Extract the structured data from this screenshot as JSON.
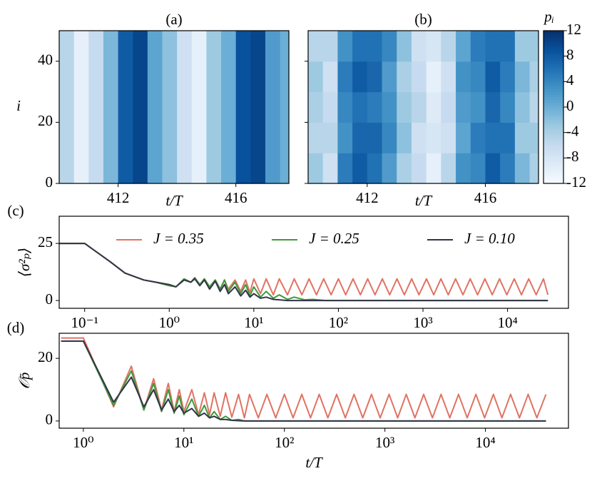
{
  "chart_data": [
    {
      "type": "heatmap",
      "title": "(a)",
      "xlabel": "t/T",
      "ylabel": "i",
      "xlim": [
        410,
        417.8
      ],
      "ylim": [
        0,
        50
      ],
      "xticks": [
        412,
        416
      ],
      "yticks": [
        0,
        20,
        40
      ],
      "x_edges": [
        410,
        410.5,
        411,
        411.5,
        412,
        412.5,
        413,
        413.5,
        414,
        414.5,
        415,
        415.5,
        416,
        416.5,
        417,
        417.5,
        417.8
      ],
      "values": [
        -5,
        -10,
        -6,
        -1,
        8,
        10,
        1,
        -2,
        -7,
        -10,
        -3,
        0,
        9,
        10,
        2,
        0
      ]
    },
    {
      "type": "heatmap",
      "title": "(b)",
      "xlabel": "t/T",
      "ytick_labels": false,
      "xlim": [
        410,
        417.8
      ],
      "ylim": [
        0,
        50
      ],
      "xticks": [
        412,
        416
      ],
      "yticks": [
        0,
        20,
        40
      ],
      "x_edges": [
        410,
        410.5,
        411,
        411.5,
        412,
        412.5,
        413,
        413.5,
        414,
        414.5,
        415,
        415.5,
        416,
        416.5,
        417,
        417.5,
        417.8
      ],
      "y_edges": [
        0,
        10,
        20,
        30,
        40,
        50
      ],
      "values": [
        [
          -3,
          -7,
          5,
          8,
          6,
          2,
          -4,
          -6,
          -10,
          -5,
          3,
          4,
          8,
          5,
          -1,
          -4
        ],
        [
          -5,
          -5,
          3,
          7,
          7,
          4,
          -2,
          -7,
          -8,
          -7,
          1,
          5,
          6,
          6,
          -3,
          -3
        ],
        [
          -4,
          -6,
          4,
          6,
          5,
          3,
          -3,
          -5,
          -9,
          -6,
          2,
          3,
          7,
          4,
          -2,
          -5
        ],
        [
          -3,
          -7,
          5,
          8,
          7,
          2,
          -4,
          -6,
          -10,
          -7,
          3,
          4,
          8,
          5,
          -1,
          -4
        ],
        [
          -5,
          -5,
          3,
          6,
          6,
          4,
          -2,
          -7,
          -8,
          -5,
          1,
          5,
          6,
          6,
          -3,
          -3
        ]
      ]
    },
    {
      "type": "colorbar",
      "label": "pᵢ",
      "clim": [
        -12,
        12
      ],
      "ticks": [
        12,
        8,
        4,
        0,
        -4,
        -8,
        -12
      ],
      "colormap": [
        "#f7fbff",
        "#deebf7",
        "#c6dbef",
        "#9ecae1",
        "#6baed6",
        "#4292c6",
        "#2171b5",
        "#08519c",
        "#08306b"
      ]
    },
    {
      "type": "line",
      "panel_label": "(c)",
      "ylabel": "⟨σ²ₚ⟩",
      "xscale": "log",
      "legend": "upper center",
      "xlim": [
        0.05,
        52500
      ],
      "ylim": [
        -3.4,
        36.9
      ],
      "yticks": [
        0,
        25
      ],
      "xticks": [
        {
          "value": 0.1,
          "label": "10⁻¹"
        },
        {
          "value": 1,
          "label": "10⁰"
        },
        {
          "value": 10,
          "label": "10¹"
        },
        {
          "value": 100,
          "label": "10²"
        },
        {
          "value": 1000,
          "label": "10³"
        },
        {
          "value": 10000,
          "label": "10⁴"
        }
      ],
      "series": [
        {
          "name": "J = 0.35",
          "color": "#e07363",
          "x": [
            0.05,
            0.1,
            0.2,
            0.3,
            0.5,
            0.7,
            1,
            1.2,
            1.5,
            1.8,
            2,
            2.3,
            2.6,
            3,
            3.5,
            4,
            4.5,
            5,
            6,
            7,
            8,
            9,
            10,
            12,
            14,
            17,
            20,
            25,
            30,
            37,
            45,
            55,
            67,
            82,
            100,
            122,
            149,
            182,
            222,
            271,
            331,
            404,
            493,
            602,
            735,
            897,
            1100,
            1340,
            1630,
            1990,
            2430,
            2970,
            3620,
            4420,
            5400,
            6590,
            8040,
            9810,
            12000,
            14600,
            17800,
            21800,
            26600,
            30000
          ],
          "values": [
            25,
            25,
            17,
            12,
            9,
            8,
            6.5,
            6,
            9.5,
            8,
            10,
            7,
            9.5,
            6,
            9,
            5,
            9,
            5,
            9,
            4,
            9,
            3.5,
            9.5,
            3,
            9.5,
            2.5,
            9.5,
            2.5,
            9.5,
            2.5,
            9.5,
            2.5,
            9.5,
            2.5,
            9.5,
            2.5,
            9.5,
            2.5,
            9.5,
            2.5,
            9.5,
            2.5,
            9.5,
            2.5,
            9.5,
            2.5,
            9.5,
            2.5,
            9.5,
            2.5,
            9.5,
            2.5,
            9.5,
            2.5,
            9.5,
            2.5,
            9.5,
            2.5,
            9.5,
            2.5,
            9.5,
            2.5,
            9.5,
            2.5
          ]
        },
        {
          "name": "J = 0.25",
          "color": "#3d9a3d",
          "x": [
            0.05,
            0.1,
            0.2,
            0.3,
            0.5,
            0.7,
            1,
            1.2,
            1.5,
            1.8,
            2,
            2.3,
            2.6,
            3,
            3.5,
            4,
            4.5,
            5,
            6,
            7,
            8,
            9,
            10,
            12,
            14,
            17,
            20,
            25,
            30,
            40,
            50,
            70,
            30000
          ],
          "values": [
            25,
            25,
            17,
            12,
            9,
            8,
            6.5,
            6,
            9.5,
            8,
            10,
            7,
            9.5,
            6,
            9,
            5,
            9,
            4,
            8,
            3,
            7,
            2,
            6,
            1.5,
            4,
            1,
            2.5,
            0.5,
            1.5,
            0.3,
            0.5,
            0,
            0
          ]
        },
        {
          "name": "J = 0.10",
          "color": "#33334a",
          "x": [
            0.05,
            0.1,
            0.2,
            0.3,
            0.5,
            0.7,
            1,
            1.2,
            1.5,
            1.8,
            2,
            2.3,
            2.6,
            3,
            3.5,
            4,
            4.5,
            5,
            6,
            7,
            8,
            9,
            10,
            12,
            14,
            17,
            20,
            25,
            30000
          ],
          "values": [
            25,
            25,
            17,
            12,
            9,
            8,
            7,
            6,
            9,
            8,
            9.5,
            6.5,
            9,
            5,
            8.5,
            4,
            7,
            3,
            6,
            2,
            4.5,
            1.5,
            3,
            1,
            1.5,
            0.5,
            0.3,
            0,
            0
          ]
        }
      ]
    },
    {
      "type": "line",
      "panel_label": "(d)",
      "ylabel": "𝒪p̄",
      "xlabel": "t/T",
      "xscale": "log",
      "xlim": [
        0.575,
        67000
      ],
      "ylim": [
        -2.3,
        28
      ],
      "yticks": [
        0,
        20
      ],
      "xticks": [
        {
          "value": 1,
          "label": "10⁰"
        },
        {
          "value": 10,
          "label": "10¹"
        },
        {
          "value": 100,
          "label": "10²"
        },
        {
          "value": 1000,
          "label": "10³"
        },
        {
          "value": 10000,
          "label": "10⁴"
        }
      ],
      "series": [
        {
          "color": "#e07363",
          "x": [
            0.6,
            1,
            2,
            3,
            4,
            5,
            6,
            7,
            8,
            9,
            10,
            12,
            14,
            16,
            18,
            20,
            23,
            26,
            30,
            35,
            40,
            45,
            55,
            67,
            82,
            100,
            122,
            149,
            182,
            222,
            271,
            331,
            404,
            493,
            602,
            735,
            897,
            1100,
            1340,
            1630,
            1990,
            2430,
            2970,
            3620,
            4420,
            5400,
            6590,
            8040,
            9810,
            12000,
            14600,
            17800,
            21800,
            26600,
            32500,
            40000
          ],
          "values": [
            26.5,
            26.5,
            4.5,
            17.5,
            3.5,
            13.5,
            3.5,
            12,
            3,
            10,
            3,
            10,
            2,
            9,
            2,
            9,
            1.5,
            9,
            1.2,
            8.5,
            1,
            8.5,
            1,
            8.5,
            1,
            8.5,
            1,
            8.5,
            1,
            8.5,
            1,
            8.5,
            1,
            8.5,
            1,
            8.5,
            1,
            8.5,
            1,
            8.5,
            1,
            8.5,
            1,
            8.5,
            1,
            8.5,
            1,
            8.5,
            1,
            8.5,
            1,
            8.5,
            1,
            8.5,
            1,
            8.5
          ]
        },
        {
          "color": "#3d9a3d",
          "x": [
            0.6,
            1,
            2,
            3,
            4,
            5,
            6,
            7,
            8,
            9,
            10,
            12,
            14,
            16,
            18,
            20,
            23,
            26,
            30,
            35,
            40,
            60,
            40000
          ],
          "values": [
            25.5,
            25.5,
            5,
            16,
            3.5,
            12,
            3,
            10,
            2.5,
            8,
            2,
            7,
            1.5,
            5,
            1,
            3,
            0.5,
            1.5,
            0.2,
            0.5,
            0,
            0,
            0
          ]
        },
        {
          "color": "#33334a",
          "x": [
            0.6,
            1,
            2,
            3,
            4,
            5,
            6,
            7,
            8,
            9,
            10,
            12,
            14,
            16,
            18,
            20,
            23,
            26,
            30,
            35,
            40,
            60,
            40000
          ],
          "values": [
            25.5,
            25.5,
            6,
            14,
            4.5,
            10,
            3.5,
            7,
            3,
            5,
            2.5,
            4,
            1.5,
            2.5,
            1,
            1.5,
            0.5,
            0.5,
            0.2,
            0.1,
            0,
            0,
            0
          ]
        }
      ]
    }
  ]
}
